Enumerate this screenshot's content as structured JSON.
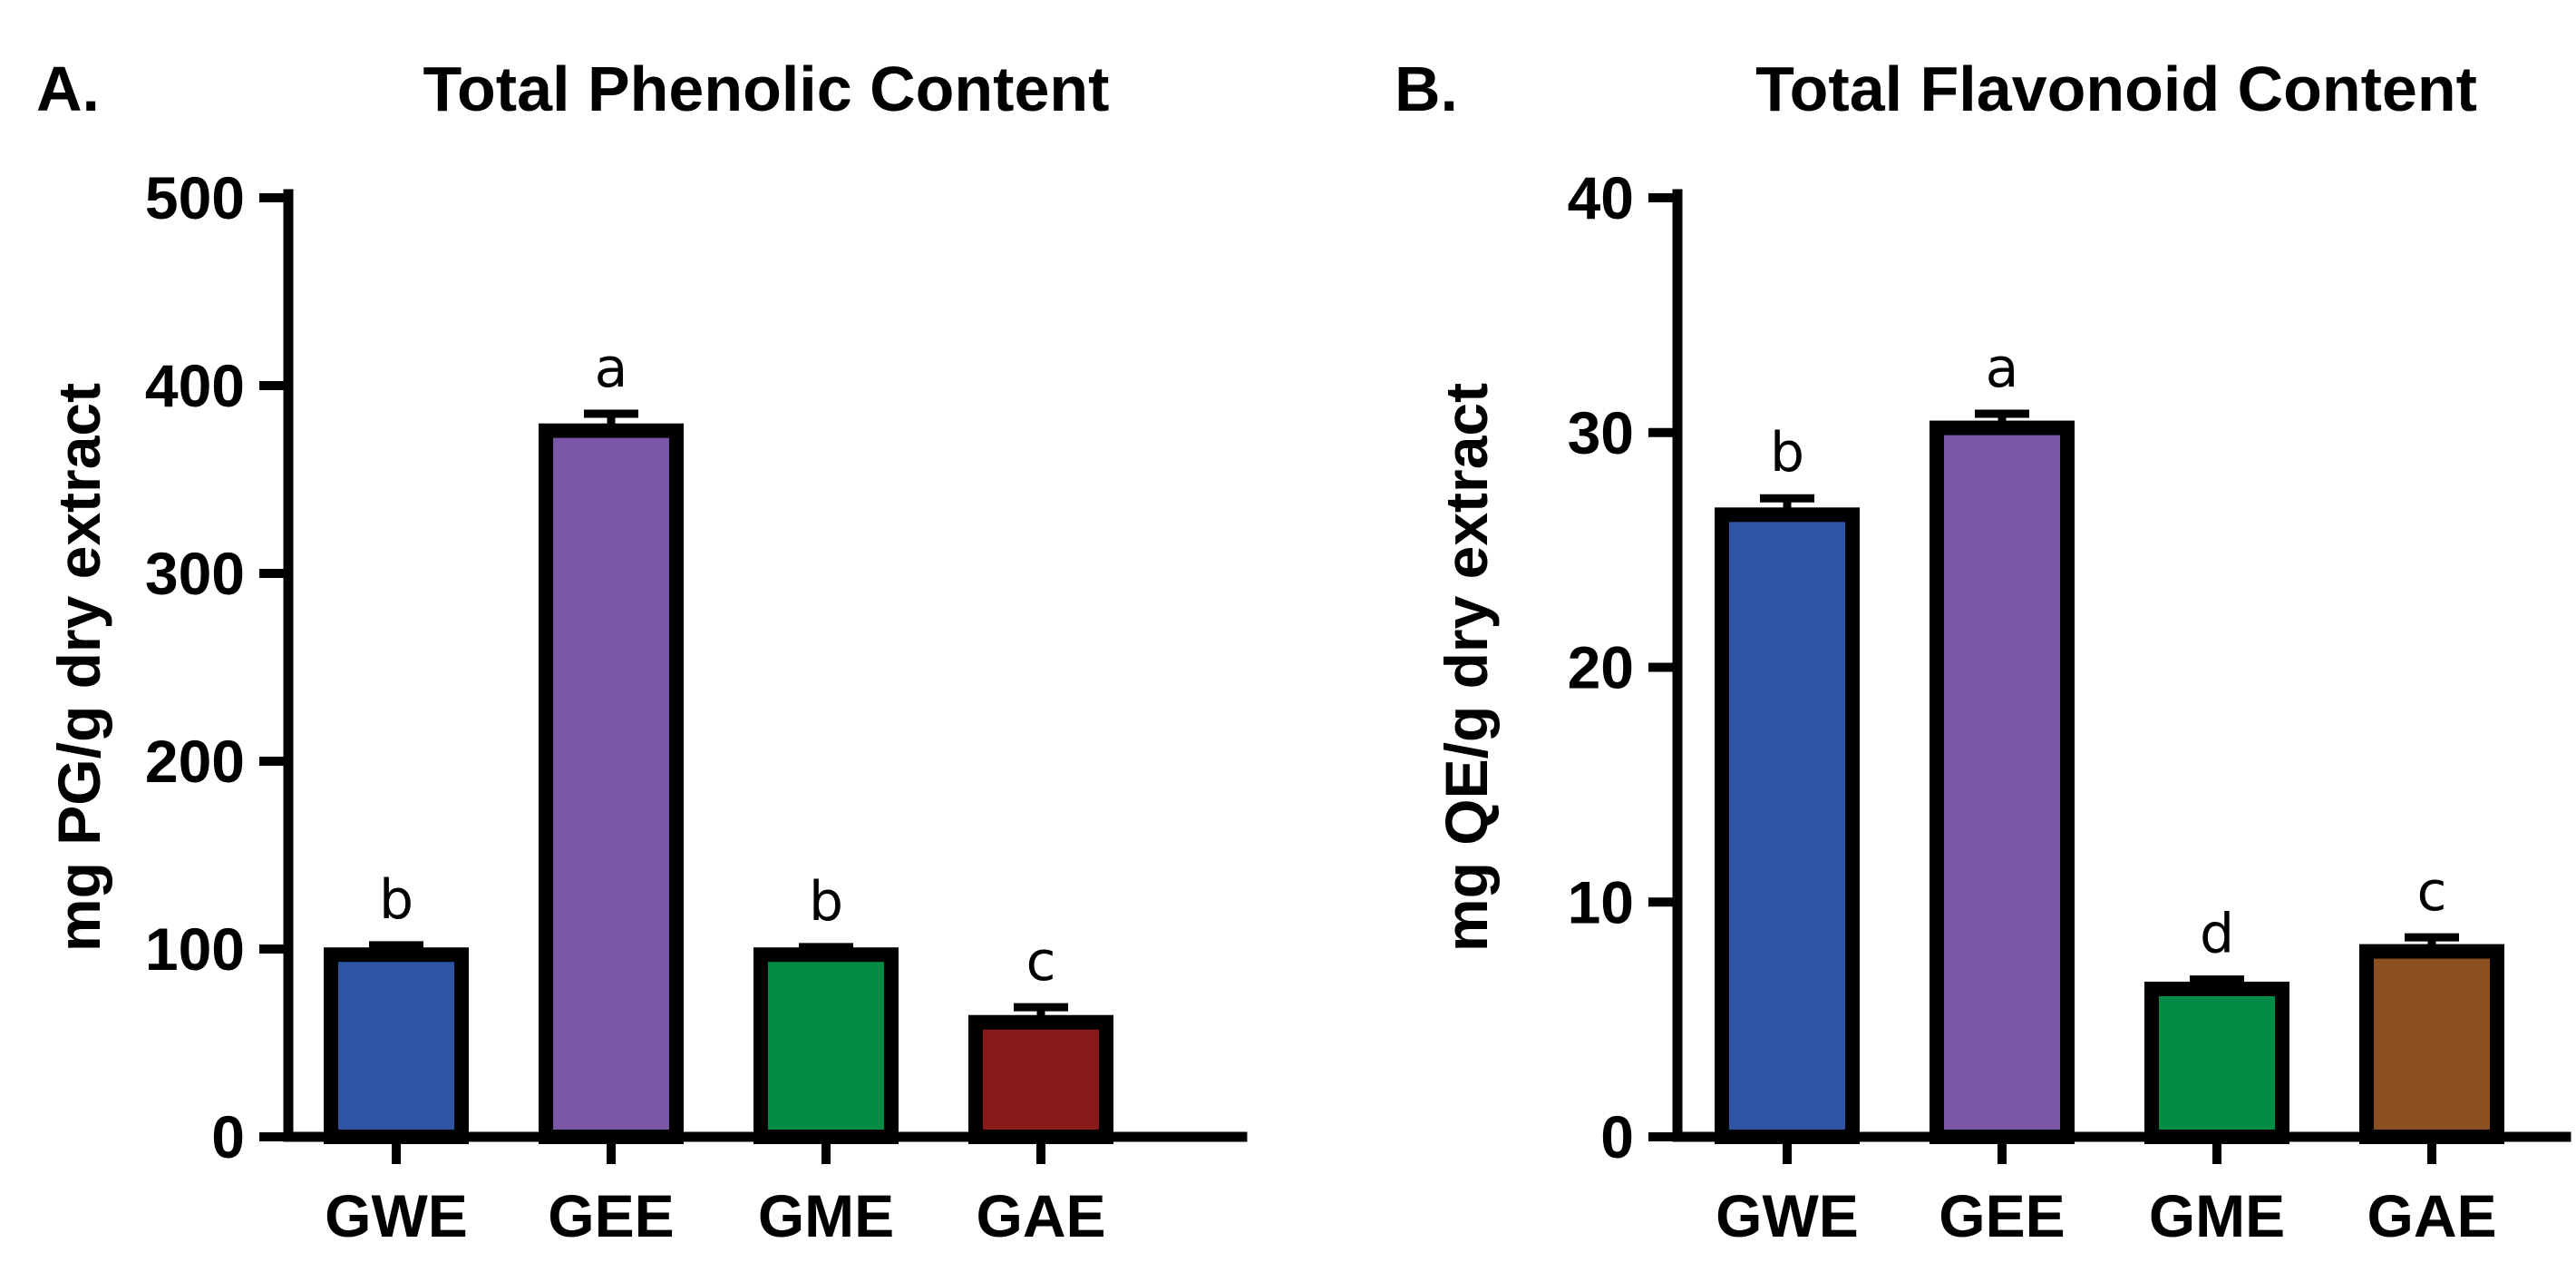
{
  "chart_data": [
    {
      "panel_label": "A.",
      "type": "bar",
      "title": "Total Phenolic Content",
      "xlabel": "",
      "ylabel": "mg PG/g dry extract",
      "ylim": [
        0,
        500
      ],
      "yticks": [
        0,
        100,
        200,
        300,
        400,
        500
      ],
      "categories": [
        "GWE",
        "GEE",
        "GME",
        "GAE"
      ],
      "values": [
        97,
        376,
        97,
        61
      ],
      "errors": [
        5,
        9,
        4,
        8
      ],
      "significance": [
        "b",
        "a",
        "b",
        "c"
      ],
      "colors": [
        "#2e55a5",
        "#7a56a6",
        "#008c45",
        "#8a1a1a"
      ]
    },
    {
      "panel_label": "B.",
      "type": "bar",
      "title": "Total Flavonoid Content",
      "xlabel": "",
      "ylabel": "mg QE/g dry extract",
      "ylim": [
        0,
        40
      ],
      "yticks": [
        0,
        10,
        20,
        30,
        40
      ],
      "categories": [
        "GWE",
        "GEE",
        "GME",
        "GAE"
      ],
      "values": [
        26.5,
        30.2,
        6.3,
        7.9
      ],
      "errors": [
        0.7,
        0.6,
        0.4,
        0.6
      ],
      "significance": [
        "b",
        "a",
        "d",
        "c"
      ],
      "colors": [
        "#2e55a5",
        "#7a56a6",
        "#008c45",
        "#8c4f22"
      ]
    }
  ]
}
